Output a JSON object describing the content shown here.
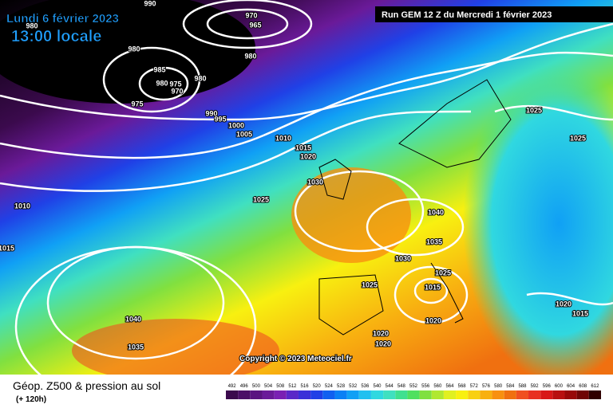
{
  "header": {
    "date": "Lundi 6 février 2023",
    "time": "13:00 locale",
    "run": "Run GEM 12 Z du Mercredi 1 février 2023"
  },
  "copyright": "Copyright © 2023 Meteociel.fr",
  "footer": {
    "title": "Géop. Z500 & pression au sol",
    "subtitle": "(+ 120h)"
  },
  "isobar_labels": [
    "990",
    "970",
    "965",
    "980",
    "980",
    "980",
    "985",
    "980",
    "975",
    "970",
    "980",
    "975",
    "990",
    "995",
    "1000",
    "1005",
    "1010",
    "1015",
    "1020",
    "1025",
    "1030",
    "1010",
    "1015",
    "1040",
    "1035",
    "1030",
    "1025",
    "1025",
    "1015",
    "1020",
    "1020",
    "1020",
    "1040",
    "1035",
    "1025",
    "1025",
    "1020",
    "1015"
  ],
  "legend": {
    "values": [
      492,
      496,
      500,
      504,
      508,
      512,
      516,
      520,
      524,
      528,
      532,
      536,
      540,
      544,
      548,
      552,
      556,
      560,
      564,
      568,
      572,
      576,
      580,
      584,
      588,
      592,
      596,
      600,
      604,
      608,
      612
    ],
    "colors": [
      "#3b0a4d",
      "#4b0f66",
      "#5a1480",
      "#6a1a99",
      "#7a20b3",
      "#5a28c8",
      "#3a30d8",
      "#2040e6",
      "#1060f0",
      "#0a80f5",
      "#10a0f5",
      "#20c0f0",
      "#30d8e0",
      "#40e0c0",
      "#40e090",
      "#50e060",
      "#80e040",
      "#b0e830",
      "#e0f020",
      "#f8f010",
      "#f8d010",
      "#f8b010",
      "#f89010",
      "#f07010",
      "#f05020",
      "#e83020",
      "#d81818",
      "#b81010",
      "#980808",
      "#700404",
      "#300000"
    ]
  }
}
